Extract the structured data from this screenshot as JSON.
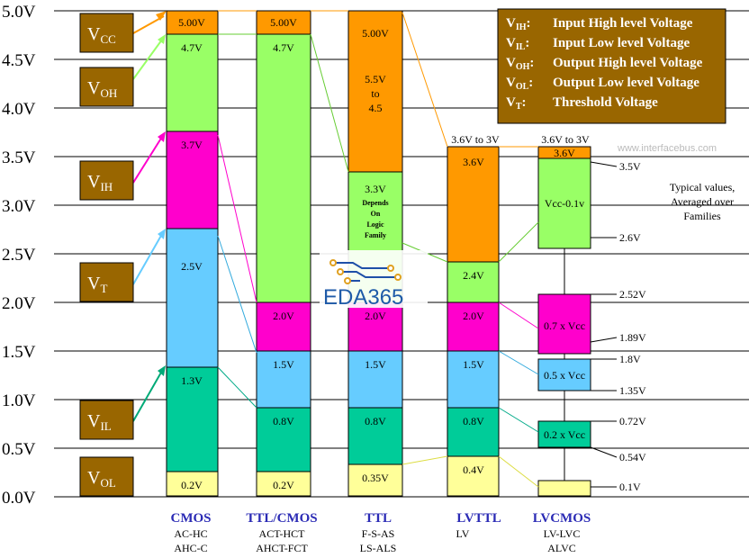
{
  "y_axis": {
    "ticks": [
      "5.0V",
      "4.5V",
      "4.0V",
      "3.5V",
      "3.0V",
      "2.5V",
      "2.0V",
      "1.5V",
      "1.0V",
      "0.5V",
      "0.0V"
    ]
  },
  "side_labels": [
    {
      "main": "V",
      "sub": "CC"
    },
    {
      "main": "V",
      "sub": "OH"
    },
    {
      "main": "V",
      "sub": "IH"
    },
    {
      "main": "V",
      "sub": "T"
    },
    {
      "main": "V",
      "sub": "IL"
    },
    {
      "main": "V",
      "sub": "OL"
    }
  ],
  "legend": {
    "rows": [
      {
        "sym": "V",
        "sub": "IH",
        "colon": ":",
        "desc": "Input High level Voltage"
      },
      {
        "sym": "V",
        "sub": "IL",
        "colon": ":",
        "desc": "Input Low level Voltage"
      },
      {
        "sym": "V",
        "sub": "OH",
        "colon": ":",
        "desc": "Output High level Voltage"
      },
      {
        "sym": "V",
        "sub": "OL",
        "colon": ":",
        "desc": "Output Low level Voltage"
      },
      {
        "sym": "V",
        "sub": "T",
        "colon": ":",
        "desc": "Threshold Voltage"
      }
    ]
  },
  "watermark": "www.interfacebus.com",
  "logo_text": "EDA365",
  "typical_note": [
    "Typical values,",
    "Averaged over",
    "Families"
  ],
  "columns": [
    {
      "name": "CMOS",
      "sub1": "AC-HC",
      "sub2": "AHC-C",
      "labels": {
        "vcc": "5.00V",
        "voh": "4.7V",
        "vih": "3.7V",
        "vt": "2.5V",
        "vil": "1.3V",
        "vol": "0.2V"
      }
    },
    {
      "name": "TTL/CMOS",
      "sub1": "ACT-HCT",
      "sub2": "AHCT-FCT",
      "labels": {
        "vcc": "5.00V",
        "voh": "4.7V",
        "vih": "2.0V",
        "vt": "1.5V",
        "vil": "0.8V",
        "vol": "0.2V"
      }
    },
    {
      "name": "TTL",
      "sub1": "F-S-AS",
      "sub2": "LS-ALS",
      "labels": {
        "vcc": "5.00V",
        "range1": "5.5V",
        "range2": "to",
        "range3": "4.5",
        "voh": "3.3V",
        "depends": [
          "Depends",
          "On",
          "Logic",
          "Family"
        ],
        "vih": "2.0V",
        "vt": "1.5V",
        "vil": "0.8V",
        "vol": "0.35V"
      }
    },
    {
      "name": "LVTTL",
      "sub1": "LV",
      "sub2": "",
      "labels": {
        "top": "3.6V to 3V",
        "vcc": "3.6V",
        "voh": "2.4V",
        "vih": "2.0V",
        "vt": "1.5V",
        "vil": "0.8V",
        "vol": "0.4V"
      }
    },
    {
      "name": "LVCMOS",
      "sub1": "LV-LVC",
      "sub2": "ALVC",
      "labels": {
        "top": "3.6V to 3V",
        "vcc": "3.6V",
        "voh": "Vcc-0.1v",
        "vih": "0.7 x Vcc",
        "vt": "0.5 x Vcc",
        "vil": "0.2 x Vcc"
      }
    }
  ],
  "right_values": [
    "3.5V",
    "2.6V",
    "2.52V",
    "1.89V",
    "1.8V",
    "1.35V",
    "0.72V",
    "0.54V",
    "0.1V"
  ],
  "colors": {
    "orange": "#ff9900",
    "green": "#99ff66",
    "magenta": "#ff00cc",
    "blue": "#66ccff",
    "teal": "#00cc99",
    "yellow": "#ffff99",
    "brown": "#996600"
  }
}
